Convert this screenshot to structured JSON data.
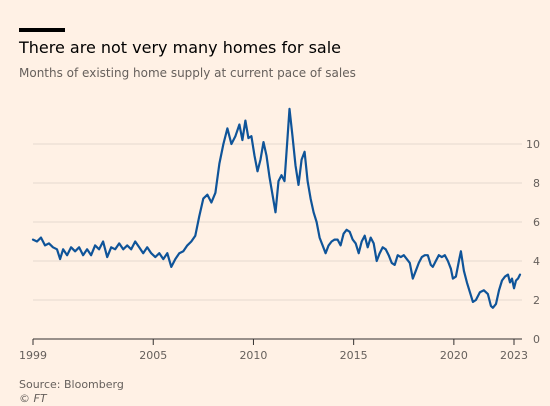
{
  "title": "There are not very many homes for sale",
  "subtitle": "Months of existing home supply at current pace of sales",
  "source": "Source: Bloomberg",
  "credit": "© FT",
  "colors": {
    "background": "#fff1e5",
    "line": "#0f5499",
    "grid": "#e6d9ce",
    "text": "#66605c"
  },
  "chart_data": {
    "type": "line",
    "title": "There are not very many homes for sale",
    "subtitle": "Months of existing home supply at current pace of sales",
    "xlabel": "",
    "ylabel": "",
    "xlim": [
      1999,
      2023.3
    ],
    "ylim": [
      0,
      12
    ],
    "x_ticks": [
      1999,
      2005,
      2010,
      2015,
      2020,
      2023
    ],
    "y_ticks": [
      0,
      2,
      4,
      6,
      8,
      10
    ],
    "grid": true,
    "y_axis_position": "right",
    "series": [
      {
        "name": "",
        "points": [
          [
            1999.0,
            5.1
          ],
          [
            1999.2,
            5.0
          ],
          [
            1999.4,
            5.2
          ],
          [
            1999.6,
            4.8
          ],
          [
            1999.8,
            4.9
          ],
          [
            2000.0,
            4.7
          ],
          [
            2000.2,
            4.6
          ],
          [
            2000.35,
            4.1
          ],
          [
            2000.5,
            4.6
          ],
          [
            2000.7,
            4.3
          ],
          [
            2000.9,
            4.7
          ],
          [
            2001.1,
            4.5
          ],
          [
            2001.3,
            4.7
          ],
          [
            2001.5,
            4.3
          ],
          [
            2001.7,
            4.6
          ],
          [
            2001.9,
            4.3
          ],
          [
            2002.1,
            4.8
          ],
          [
            2002.3,
            4.6
          ],
          [
            2002.5,
            5.0
          ],
          [
            2002.7,
            4.2
          ],
          [
            2002.9,
            4.7
          ],
          [
            2003.1,
            4.6
          ],
          [
            2003.3,
            4.9
          ],
          [
            2003.5,
            4.6
          ],
          [
            2003.7,
            4.8
          ],
          [
            2003.9,
            4.6
          ],
          [
            2004.1,
            5.0
          ],
          [
            2004.3,
            4.7
          ],
          [
            2004.5,
            4.4
          ],
          [
            2004.7,
            4.7
          ],
          [
            2004.9,
            4.4
          ],
          [
            2005.1,
            4.2
          ],
          [
            2005.3,
            4.4
          ],
          [
            2005.5,
            4.1
          ],
          [
            2005.7,
            4.4
          ],
          [
            2005.9,
            3.7
          ],
          [
            2006.1,
            4.1
          ],
          [
            2006.3,
            4.4
          ],
          [
            2006.5,
            4.5
          ],
          [
            2006.7,
            4.8
          ],
          [
            2006.9,
            5.0
          ],
          [
            2007.1,
            5.3
          ],
          [
            2007.3,
            6.3
          ],
          [
            2007.5,
            7.2
          ],
          [
            2007.7,
            7.4
          ],
          [
            2007.9,
            7.0
          ],
          [
            2008.1,
            7.5
          ],
          [
            2008.3,
            9.0
          ],
          [
            2008.5,
            10.0
          ],
          [
            2008.7,
            10.8
          ],
          [
            2008.9,
            10.0
          ],
          [
            2009.1,
            10.4
          ],
          [
            2009.3,
            11.0
          ],
          [
            2009.45,
            10.2
          ],
          [
            2009.6,
            11.2
          ],
          [
            2009.75,
            10.3
          ],
          [
            2009.9,
            10.4
          ],
          [
            2010.05,
            9.4
          ],
          [
            2010.2,
            8.6
          ],
          [
            2010.35,
            9.2
          ],
          [
            2010.5,
            10.1
          ],
          [
            2010.65,
            9.4
          ],
          [
            2010.8,
            8.3
          ],
          [
            2010.95,
            7.4
          ],
          [
            2011.1,
            6.5
          ],
          [
            2011.25,
            8.1
          ],
          [
            2011.4,
            8.4
          ],
          [
            2011.55,
            8.1
          ],
          [
            2011.7,
            10.3
          ],
          [
            2011.8,
            11.8
          ],
          [
            2011.95,
            10.4
          ],
          [
            2012.1,
            8.9
          ],
          [
            2012.25,
            7.9
          ],
          [
            2012.4,
            9.2
          ],
          [
            2012.55,
            9.6
          ],
          [
            2012.7,
            8.1
          ],
          [
            2012.85,
            7.2
          ],
          [
            2013.0,
            6.5
          ],
          [
            2013.15,
            6.0
          ],
          [
            2013.3,
            5.2
          ],
          [
            2013.45,
            4.8
          ],
          [
            2013.6,
            4.4
          ],
          [
            2013.75,
            4.8
          ],
          [
            2013.9,
            5.0
          ],
          [
            2014.05,
            5.1
          ],
          [
            2014.2,
            5.1
          ],
          [
            2014.35,
            4.8
          ],
          [
            2014.5,
            5.4
          ],
          [
            2014.65,
            5.6
          ],
          [
            2014.8,
            5.5
          ],
          [
            2014.95,
            5.1
          ],
          [
            2015.1,
            4.9
          ],
          [
            2015.25,
            4.4
          ],
          [
            2015.4,
            5.0
          ],
          [
            2015.55,
            5.3
          ],
          [
            2015.7,
            4.7
          ],
          [
            2015.85,
            5.2
          ],
          [
            2016.0,
            4.9
          ],
          [
            2016.15,
            4.0
          ],
          [
            2016.3,
            4.4
          ],
          [
            2016.45,
            4.7
          ],
          [
            2016.6,
            4.6
          ],
          [
            2016.75,
            4.3
          ],
          [
            2016.9,
            3.9
          ],
          [
            2017.05,
            3.8
          ],
          [
            2017.2,
            4.3
          ],
          [
            2017.35,
            4.2
          ],
          [
            2017.5,
            4.3
          ],
          [
            2017.65,
            4.1
          ],
          [
            2017.8,
            3.9
          ],
          [
            2017.95,
            3.1
          ],
          [
            2018.1,
            3.5
          ],
          [
            2018.25,
            3.9
          ],
          [
            2018.4,
            4.2
          ],
          [
            2018.55,
            4.3
          ],
          [
            2018.7,
            4.3
          ],
          [
            2018.85,
            3.8
          ],
          [
            2018.95,
            3.7
          ],
          [
            2019.1,
            4.0
          ],
          [
            2019.25,
            4.3
          ],
          [
            2019.4,
            4.2
          ],
          [
            2019.55,
            4.3
          ],
          [
            2019.7,
            4.0
          ],
          [
            2019.85,
            3.6
          ],
          [
            2019.95,
            3.1
          ],
          [
            2020.1,
            3.2
          ],
          [
            2020.25,
            4.0
          ],
          [
            2020.35,
            4.5
          ],
          [
            2020.5,
            3.5
          ],
          [
            2020.65,
            2.9
          ],
          [
            2020.8,
            2.4
          ],
          [
            2020.95,
            1.9
          ],
          [
            2021.1,
            2.0
          ],
          [
            2021.3,
            2.4
          ],
          [
            2021.5,
            2.5
          ],
          [
            2021.7,
            2.3
          ],
          [
            2021.85,
            1.7
          ],
          [
            2021.95,
            1.6
          ],
          [
            2022.1,
            1.8
          ],
          [
            2022.25,
            2.5
          ],
          [
            2022.4,
            3.0
          ],
          [
            2022.55,
            3.2
          ],
          [
            2022.7,
            3.3
          ],
          [
            2022.8,
            2.9
          ],
          [
            2022.9,
            3.1
          ],
          [
            2023.0,
            2.6
          ],
          [
            2023.1,
            3.0
          ],
          [
            2023.2,
            3.1
          ],
          [
            2023.3,
            3.3
          ]
        ]
      }
    ]
  }
}
